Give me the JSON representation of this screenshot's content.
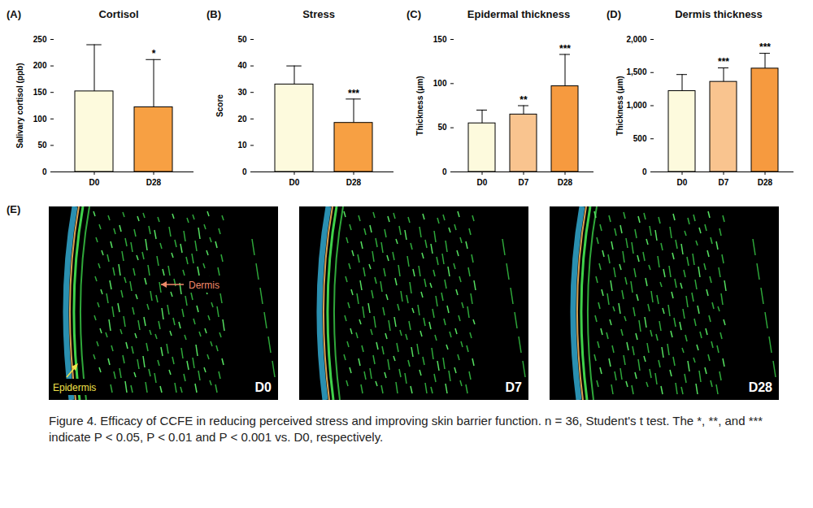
{
  "chart_data": [
    {
      "type": "bar",
      "panel": "(A)",
      "title": "Cortisol",
      "y_label": "Salivary cortisol (ppb)",
      "categories": [
        "D0",
        "D28"
      ],
      "values": [
        152,
        122
      ],
      "errors": [
        88,
        90
      ],
      "annotations": [
        null,
        "*"
      ],
      "colors": [
        "#fdfadd",
        "#f7a043"
      ],
      "ylim": [
        0,
        250
      ],
      "yticks": [
        0,
        50,
        100,
        150,
        200,
        250
      ],
      "grid": false
    },
    {
      "type": "bar",
      "panel": "(B)",
      "title": "Stress",
      "y_label": "Score",
      "categories": [
        "D0",
        "D28"
      ],
      "values": [
        33,
        18.5
      ],
      "errors": [
        7,
        9
      ],
      "annotations": [
        null,
        "***"
      ],
      "colors": [
        "#fdfadd",
        "#f7a043"
      ],
      "ylim": [
        0,
        50
      ],
      "yticks": [
        0,
        10,
        20,
        30,
        40,
        50
      ],
      "grid": false
    },
    {
      "type": "bar",
      "panel": "(C)",
      "title": "Epidermal thickness",
      "y_label": "Thickness (μm)",
      "categories": [
        "D0",
        "D7",
        "D28"
      ],
      "values": [
        55,
        65,
        97
      ],
      "errors": [
        15,
        10,
        36
      ],
      "annotations": [
        null,
        "**",
        "***"
      ],
      "colors": [
        "#fdfadd",
        "#f9c48f",
        "#f69a3f"
      ],
      "ylim": [
        0,
        150
      ],
      "yticks": [
        0,
        50,
        100,
        150
      ],
      "grid": false
    },
    {
      "type": "bar",
      "panel": "(D)",
      "title": "Dermis thickness",
      "y_label": "Thickness (μm)",
      "categories": [
        "D0",
        "D7",
        "D28"
      ],
      "values": [
        1220,
        1360,
        1560
      ],
      "errors": [
        250,
        210,
        230
      ],
      "annotations": [
        null,
        "***",
        "***"
      ],
      "colors": [
        "#fdfadd",
        "#f9c48f",
        "#f69a3f"
      ],
      "ylim": [
        0,
        2000
      ],
      "yticks": [
        0,
        500,
        1000,
        1500,
        2000
      ],
      "grid": false
    }
  ],
  "images": {
    "panel": "(E)",
    "frames": [
      {
        "label": "D0",
        "annotations": [
          "Dermis",
          "Epidermis"
        ]
      },
      {
        "label": "D7"
      },
      {
        "label": "D28"
      }
    ]
  },
  "caption": "Figure 4. Efficacy of CCFE in reducing perceived stress and improving skin barrier function. n = 36, Student's t test. The *, **, and *** indicate P < 0.05, P < 0.01 and P < 0.001 vs. D0, respectively."
}
